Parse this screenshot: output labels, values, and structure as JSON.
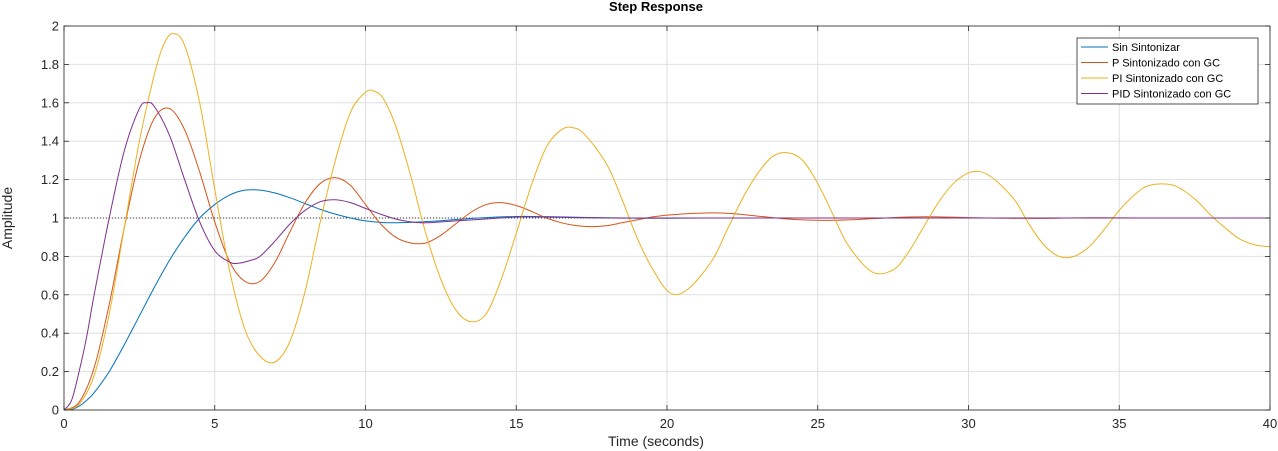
{
  "chart_data": {
    "type": "line",
    "title": "Step Response",
    "xlabel": "Time (seconds)",
    "ylabel": "Amplitude",
    "xlim": [
      0,
      40
    ],
    "ylim": [
      0,
      2
    ],
    "xticks": [
      0,
      5,
      10,
      15,
      20,
      25,
      30,
      35,
      40
    ],
    "yticks": [
      0,
      0.2,
      0.4,
      0.6,
      0.8,
      1,
      1.2,
      1.4,
      1.6,
      1.8,
      2
    ],
    "xtick_labels": [
      "0",
      "5",
      "10",
      "15",
      "20",
      "25",
      "30",
      "35",
      "40"
    ],
    "ytick_labels": [
      "0",
      "0.2",
      "0.4",
      "0.6",
      "0.8",
      "1",
      "1.2",
      "1.4",
      "1.6",
      "1.8",
      "2"
    ],
    "grid": true,
    "legend_position": "top-right",
    "reference_line": {
      "y": 1,
      "style": "dotted"
    },
    "series": [
      {
        "name": "Sin Sintonizar",
        "color": "#0072BD",
        "x": [
          0,
          0.25,
          0.5,
          0.75,
          1,
          1.5,
          2,
          2.5,
          3,
          3.5,
          4,
          4.5,
          5,
          5.5,
          6,
          6.5,
          7,
          7.5,
          8,
          8.5,
          9,
          9.5,
          10,
          10.5,
          11,
          11.5,
          12,
          12.5,
          13,
          14,
          15,
          16,
          17,
          18,
          19,
          20,
          22,
          24,
          26,
          28,
          30,
          32,
          34,
          36,
          38,
          40
        ],
        "y": [
          0,
          0.003,
          0.02,
          0.05,
          0.09,
          0.2,
          0.34,
          0.49,
          0.64,
          0.78,
          0.9,
          1.0,
          1.07,
          1.12,
          1.145,
          1.145,
          1.13,
          1.105,
          1.075,
          1.045,
          1.02,
          1.0,
          0.985,
          0.977,
          0.975,
          0.977,
          0.981,
          0.986,
          0.992,
          1.002,
          1.008,
          1.007,
          1.004,
          1.001,
          0.999,
          0.999,
          1.0,
          1.0,
          1.0,
          1.0,
          1.0,
          1.0,
          1.0,
          1.0,
          1.0,
          1.0
        ]
      },
      {
        "name": "P Sintonizado con GC",
        "color": "#D95319",
        "x": [
          0,
          0.5,
          1,
          1.5,
          2,
          2.5,
          3,
          3.5,
          4,
          4.5,
          5,
          5.5,
          6,
          6.5,
          7,
          7.5,
          8,
          8.5,
          9,
          9.5,
          10,
          10.5,
          11,
          11.5,
          12,
          12.5,
          13,
          13.5,
          14,
          14.5,
          15,
          15.5,
          16,
          16.5,
          17,
          17.5,
          18,
          18.5,
          19,
          19.5,
          20,
          21,
          22,
          23,
          24,
          25,
          26,
          27,
          28,
          29,
          30,
          32,
          34,
          36,
          38,
          40
        ],
        "y": [
          0,
          0.04,
          0.22,
          0.55,
          0.95,
          1.3,
          1.52,
          1.57,
          1.46,
          1.24,
          0.98,
          0.77,
          0.67,
          0.67,
          0.77,
          0.93,
          1.08,
          1.18,
          1.21,
          1.17,
          1.07,
          0.97,
          0.9,
          0.87,
          0.87,
          0.91,
          0.97,
          1.03,
          1.07,
          1.08,
          1.065,
          1.035,
          1.0,
          0.975,
          0.96,
          0.955,
          0.96,
          0.975,
          0.99,
          1.005,
          1.015,
          1.025,
          1.025,
          1.01,
          0.995,
          0.988,
          0.99,
          0.998,
          1.005,
          1.006,
          1.002,
          0.998,
          1.001,
          1.0,
          1.0,
          1.0
        ]
      },
      {
        "name": "PI Sintonizado con GC",
        "color": "#EDB120",
        "x": [
          0,
          0.5,
          1,
          1.5,
          2,
          2.5,
          3,
          3.3,
          3.6,
          4,
          4.5,
          5,
          5.5,
          6,
          6.5,
          7,
          7.5,
          8,
          8.5,
          9,
          9.5,
          10,
          10.3,
          10.6,
          11,
          11.5,
          12,
          12.5,
          13,
          13.5,
          14,
          14.5,
          15,
          15.5,
          16,
          16.5,
          16.9,
          17.3,
          18,
          18.5,
          19,
          19.5,
          20.1,
          20.7,
          21.5,
          22,
          22.5,
          23,
          23.5,
          24,
          24.5,
          25,
          25.5,
          26,
          26.8,
          27.5,
          28,
          28.5,
          29,
          29.5,
          30.1,
          30.7,
          31.5,
          32,
          32.5,
          33,
          33.5,
          34,
          34.5,
          35,
          35.5,
          36,
          36.8,
          37.5,
          38,
          38.5,
          39,
          39.5,
          40
        ],
        "y": [
          0,
          0.03,
          0.18,
          0.5,
          0.95,
          1.4,
          1.75,
          1.9,
          1.96,
          1.9,
          1.6,
          1.15,
          0.72,
          0.42,
          0.28,
          0.25,
          0.36,
          0.62,
          0.98,
          1.3,
          1.55,
          1.655,
          1.66,
          1.62,
          1.48,
          1.22,
          0.92,
          0.68,
          0.52,
          0.46,
          0.5,
          0.68,
          0.92,
          1.17,
          1.37,
          1.46,
          1.47,
          1.43,
          1.28,
          1.1,
          0.9,
          0.74,
          0.61,
          0.63,
          0.78,
          0.94,
          1.1,
          1.23,
          1.32,
          1.34,
          1.3,
          1.18,
          1.02,
          0.86,
          0.72,
          0.73,
          0.82,
          0.95,
          1.08,
          1.18,
          1.24,
          1.22,
          1.1,
          0.97,
          0.86,
          0.8,
          0.8,
          0.85,
          0.94,
          1.04,
          1.12,
          1.17,
          1.17,
          1.1,
          1.02,
          0.95,
          0.89,
          0.86,
          0.85
        ]
      },
      {
        "name": "PID Sintonizado con GC",
        "color": "#7E2F8E",
        "x": [
          0,
          0.25,
          0.5,
          0.75,
          1,
          1.5,
          2,
          2.5,
          2.75,
          3,
          3.5,
          4,
          4.5,
          5,
          5.5,
          5.8,
          6.2,
          6.5,
          7,
          7.5,
          8,
          8.5,
          9,
          9.5,
          10,
          10.5,
          11,
          11.5,
          12,
          13,
          14,
          15,
          16,
          18,
          20,
          25,
          30,
          35,
          40
        ],
        "y": [
          0,
          0.05,
          0.2,
          0.38,
          0.6,
          1.0,
          1.35,
          1.57,
          1.6,
          1.58,
          1.43,
          1.2,
          0.98,
          0.83,
          0.77,
          0.765,
          0.78,
          0.8,
          0.88,
          0.97,
          1.04,
          1.085,
          1.095,
          1.08,
          1.05,
          1.02,
          0.995,
          0.98,
          0.975,
          0.985,
          0.995,
          1.005,
          1.005,
          1.0,
          1.0,
          1.0,
          1.0,
          1.0,
          1.0
        ]
      }
    ]
  }
}
